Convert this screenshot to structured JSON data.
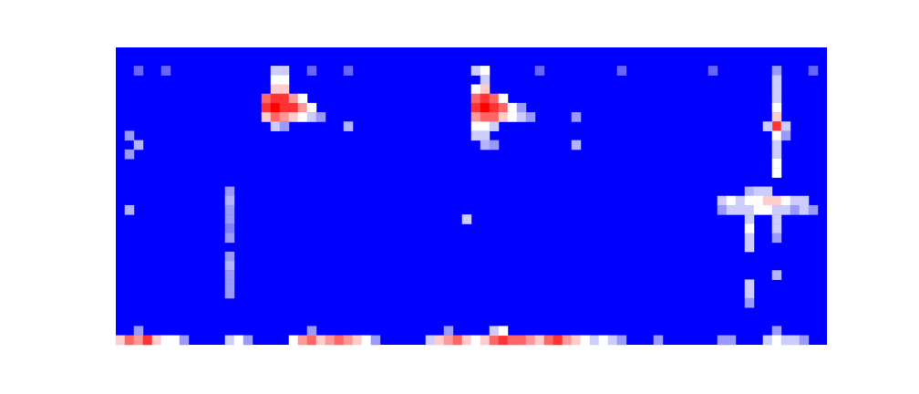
{
  "chart_data": {
    "type": "heatmap",
    "tick_labels": false,
    "grid": false,
    "xlim": [
      0,
      78
    ],
    "ylim": [
      0,
      32
    ],
    "clim": [
      0,
      1
    ],
    "cells": [
      [
        17,
        29,
        0.4
      ],
      [
        18,
        29,
        0.4
      ],
      [
        17,
        28,
        0.5
      ],
      [
        18,
        28,
        0.5
      ],
      [
        17,
        27,
        0.6
      ],
      [
        18,
        27,
        0.6
      ],
      [
        16,
        26,
        0.8
      ],
      [
        17,
        26,
        0.9
      ],
      [
        18,
        26,
        0.9
      ],
      [
        19,
        26,
        0.7
      ],
      [
        20,
        26,
        0.5
      ],
      [
        16,
        25,
        0.9
      ],
      [
        17,
        25,
        1
      ],
      [
        18,
        25,
        0.9
      ],
      [
        19,
        25,
        0.9
      ],
      [
        20,
        25,
        0.7
      ],
      [
        21,
        25,
        0.5
      ],
      [
        16,
        24,
        0.6
      ],
      [
        17,
        24,
        0.8
      ],
      [
        18,
        24,
        0.7
      ],
      [
        19,
        24,
        0.6
      ],
      [
        20,
        24,
        0.5
      ],
      [
        21,
        24,
        0.4
      ],
      [
        22,
        24,
        0.3
      ],
      [
        17,
        23,
        0.4
      ],
      [
        18,
        23,
        0.3
      ],
      [
        25,
        23,
        0.35
      ],
      [
        39,
        29,
        0.4
      ],
      [
        40,
        29,
        0.5
      ],
      [
        40,
        28,
        0.4
      ],
      [
        39,
        27,
        0.5
      ],
      [
        40,
        27,
        0.6
      ],
      [
        39,
        26,
        0.8
      ],
      [
        40,
        26,
        0.9
      ],
      [
        41,
        26,
        0.8
      ],
      [
        42,
        26,
        0.5
      ],
      [
        39,
        25,
        0.9
      ],
      [
        40,
        25,
        1
      ],
      [
        41,
        25,
        0.9
      ],
      [
        42,
        25,
        0.8
      ],
      [
        43,
        25,
        0.5
      ],
      [
        44,
        25,
        0.3
      ],
      [
        39,
        24,
        0.7
      ],
      [
        40,
        24,
        0.8
      ],
      [
        41,
        24,
        0.8
      ],
      [
        42,
        24,
        0.6
      ],
      [
        43,
        24,
        0.5
      ],
      [
        44,
        24,
        0.4
      ],
      [
        45,
        24,
        0.3
      ],
      [
        39,
        23,
        0.5
      ],
      [
        40,
        23,
        0.5
      ],
      [
        41,
        23,
        0.4
      ],
      [
        39,
        22,
        0.4
      ],
      [
        40,
        22,
        0.4
      ],
      [
        40,
        21,
        0.35
      ],
      [
        41,
        21,
        0.3
      ],
      [
        50,
        24,
        0.3
      ],
      [
        50,
        21,
        0.35
      ],
      [
        38,
        13,
        0.4
      ],
      [
        72,
        29,
        0.3
      ],
      [
        72,
        28,
        0.4
      ],
      [
        72,
        27,
        0.4
      ],
      [
        72,
        26,
        0.4
      ],
      [
        72,
        25,
        0.5
      ],
      [
        72,
        24,
        0.6
      ],
      [
        72,
        23,
        0.9
      ],
      [
        73,
        23,
        0.4
      ],
      [
        71,
        23,
        0.4
      ],
      [
        72,
        22,
        0.5
      ],
      [
        73,
        22,
        0.3
      ],
      [
        72,
        21,
        0.4
      ],
      [
        72,
        20,
        0.4
      ],
      [
        72,
        19,
        0.5
      ],
      [
        72,
        18,
        0.5
      ],
      [
        69,
        16,
        0.35
      ],
      [
        70,
        16,
        0.4
      ],
      [
        71,
        16,
        0.4
      ],
      [
        66,
        15,
        0.4
      ],
      [
        67,
        15,
        0.5
      ],
      [
        68,
        15,
        0.4
      ],
      [
        69,
        15,
        0.5
      ],
      [
        70,
        15,
        0.5
      ],
      [
        71,
        15,
        0.6
      ],
      [
        72,
        15,
        0.6
      ],
      [
        73,
        15,
        0.5
      ],
      [
        74,
        15,
        0.4
      ],
      [
        75,
        15,
        0.4
      ],
      [
        66,
        14,
        0.3
      ],
      [
        67,
        14,
        0.4
      ],
      [
        68,
        14,
        0.4
      ],
      [
        69,
        14,
        0.4
      ],
      [
        70,
        14,
        0.5
      ],
      [
        71,
        14,
        0.5
      ],
      [
        72,
        14,
        0.4
      ],
      [
        73,
        14,
        0.4
      ],
      [
        74,
        14,
        0.3
      ],
      [
        75,
        14,
        0.4
      ],
      [
        76,
        14,
        0.3
      ],
      [
        69,
        13,
        0.4
      ],
      [
        69,
        12,
        0.5
      ],
      [
        69,
        11,
        0.4
      ],
      [
        69,
        10,
        0.4
      ],
      [
        72,
        13,
        0.4
      ],
      [
        72,
        12,
        0.4
      ],
      [
        72,
        11,
        0.3
      ],
      [
        72,
        7,
        0.35
      ],
      [
        69,
        6,
        0.4
      ],
      [
        69,
        5,
        0.4
      ],
      [
        69,
        4,
        0.3
      ],
      [
        72,
        1,
        0.3
      ],
      [
        12,
        16,
        0.3
      ],
      [
        12,
        15,
        0.35
      ],
      [
        12,
        14,
        0.3
      ],
      [
        12,
        13,
        0.3
      ],
      [
        12,
        12,
        0.25
      ],
      [
        12,
        11,
        0.3
      ],
      [
        12,
        9,
        0.3
      ],
      [
        12,
        8,
        0.35
      ],
      [
        12,
        7,
        0.3
      ],
      [
        12,
        6,
        0.3
      ],
      [
        12,
        5,
        0.3
      ],
      [
        1,
        22,
        0.3
      ],
      [
        2,
        21,
        0.35
      ],
      [
        1,
        20,
        0.3
      ],
      [
        1,
        14,
        0.35
      ],
      [
        0,
        0,
        0.6
      ],
      [
        1,
        0,
        0.8
      ],
      [
        2,
        0,
        0.7
      ],
      [
        3,
        0,
        0.9
      ],
      [
        4,
        0,
        0.6
      ],
      [
        5,
        0,
        0.5
      ],
      [
        6,
        0,
        0.5
      ],
      [
        7,
        0,
        0.3
      ],
      [
        12,
        0,
        0.4
      ],
      [
        13,
        0,
        0.5
      ],
      [
        14,
        0,
        0.3
      ],
      [
        19,
        0,
        0.5
      ],
      [
        20,
        0,
        0.7
      ],
      [
        21,
        0,
        0.8
      ],
      [
        22,
        0,
        0.6
      ],
      [
        23,
        0,
        0.7
      ],
      [
        24,
        0,
        0.8
      ],
      [
        25,
        0,
        0.7
      ],
      [
        26,
        0,
        0.6
      ],
      [
        27,
        0,
        0.5
      ],
      [
        28,
        0,
        0.3
      ],
      [
        34,
        0,
        0.4
      ],
      [
        35,
        0,
        0.6
      ],
      [
        36,
        0,
        0.7
      ],
      [
        37,
        0,
        0.8
      ],
      [
        38,
        0,
        0.6
      ],
      [
        39,
        0,
        0.5
      ],
      [
        40,
        0,
        0.6
      ],
      [
        41,
        0,
        0.8
      ],
      [
        42,
        0,
        0.9
      ],
      [
        43,
        0,
        0.8
      ],
      [
        44,
        0,
        0.8
      ],
      [
        45,
        0,
        0.7
      ],
      [
        46,
        0,
        0.6
      ],
      [
        47,
        0,
        0.8
      ],
      [
        48,
        0,
        0.9
      ],
      [
        49,
        0,
        0.7
      ],
      [
        50,
        0,
        0.6
      ],
      [
        51,
        0,
        0.5
      ],
      [
        52,
        0,
        0.4
      ],
      [
        53,
        0,
        0.5
      ],
      [
        54,
        0,
        0.4
      ],
      [
        55,
        0,
        0.3
      ],
      [
        59,
        0,
        0.3
      ],
      [
        66,
        0,
        0.3
      ],
      [
        67,
        0,
        0.3
      ],
      [
        71,
        0,
        0.4
      ],
      [
        72,
        0,
        0.5
      ],
      [
        73,
        0,
        0.4
      ],
      [
        74,
        0,
        0.4
      ],
      [
        75,
        0,
        0.3
      ],
      [
        41,
        1,
        0.4
      ],
      [
        42,
        1,
        0.5
      ],
      [
        2,
        1,
        0.3
      ],
      [
        21,
        1,
        0.3
      ],
      [
        36,
        1,
        0.3
      ],
      [
        2,
        29,
        0.2
      ],
      [
        5,
        29,
        0.2
      ],
      [
        21,
        29,
        0.2
      ],
      [
        25,
        29,
        0.2
      ],
      [
        46,
        29,
        0.2
      ],
      [
        55,
        29,
        0.2
      ],
      [
        65,
        29,
        0.2
      ],
      [
        76,
        29,
        0.2
      ]
    ]
  }
}
